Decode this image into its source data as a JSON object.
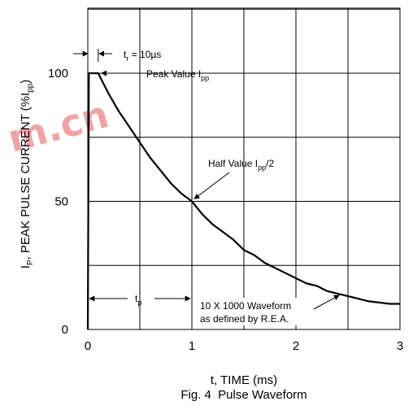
{
  "chart_data": {
    "type": "line",
    "title": "Fig. 4  Pulse Waveform",
    "xlabel": "t, TIME (ms)",
    "ylabel": {
      "prefix": "I",
      "prefix_sub": "P",
      "text": ", PEAK PULSE CURRENT (%I",
      "sub": "pp",
      "suffix": ")"
    },
    "xlim": [
      0,
      3
    ],
    "ylim": [
      0,
      100
    ],
    "grid": true,
    "x_ticks": [
      0,
      1,
      2,
      3
    ],
    "x_tick_labels": [
      "0",
      "1",
      "2",
      "3"
    ],
    "y_tick_labels": [
      {
        "value": 0,
        "label": "0"
      },
      {
        "value": 50,
        "label": "50"
      },
      {
        "value": 100,
        "label": "100"
      }
    ],
    "series": [
      {
        "x": [
          0,
          0.01,
          0.1,
          0.2,
          0.3,
          0.4,
          0.5,
          0.6,
          0.7,
          0.8,
          0.9,
          1.0,
          1.1,
          1.2,
          1.3,
          1.4,
          1.5,
          1.6,
          1.7,
          1.8,
          1.9,
          2.0,
          2.1,
          2.2,
          2.3,
          2.4,
          2.5,
          2.6,
          2.7,
          2.8,
          2.9,
          3.0
        ],
        "y": [
          0,
          100,
          100,
          92,
          85,
          79,
          73,
          67,
          62,
          57,
          53,
          50,
          45,
          41,
          38,
          35,
          31,
          29,
          26,
          24,
          22,
          20,
          18,
          17,
          15,
          14,
          13,
          12,
          11,
          10.5,
          10,
          10
        ]
      }
    ],
    "annotations": {
      "rise_time": {
        "prefix": "t",
        "sub": "r",
        "text": " = 10µs"
      },
      "peak": {
        "text": "Peak Value I",
        "sub": "pp"
      },
      "half": {
        "text": "Half Value I",
        "sub": "pp",
        "suffix": "/2"
      },
      "tp": {
        "text": "t",
        "sub": "p"
      },
      "waveform": {
        "line1": "10 X 1000 Waveform",
        "line2": "as defined by R.E.A."
      }
    }
  },
  "watermark": {
    "text": "m.cn"
  }
}
